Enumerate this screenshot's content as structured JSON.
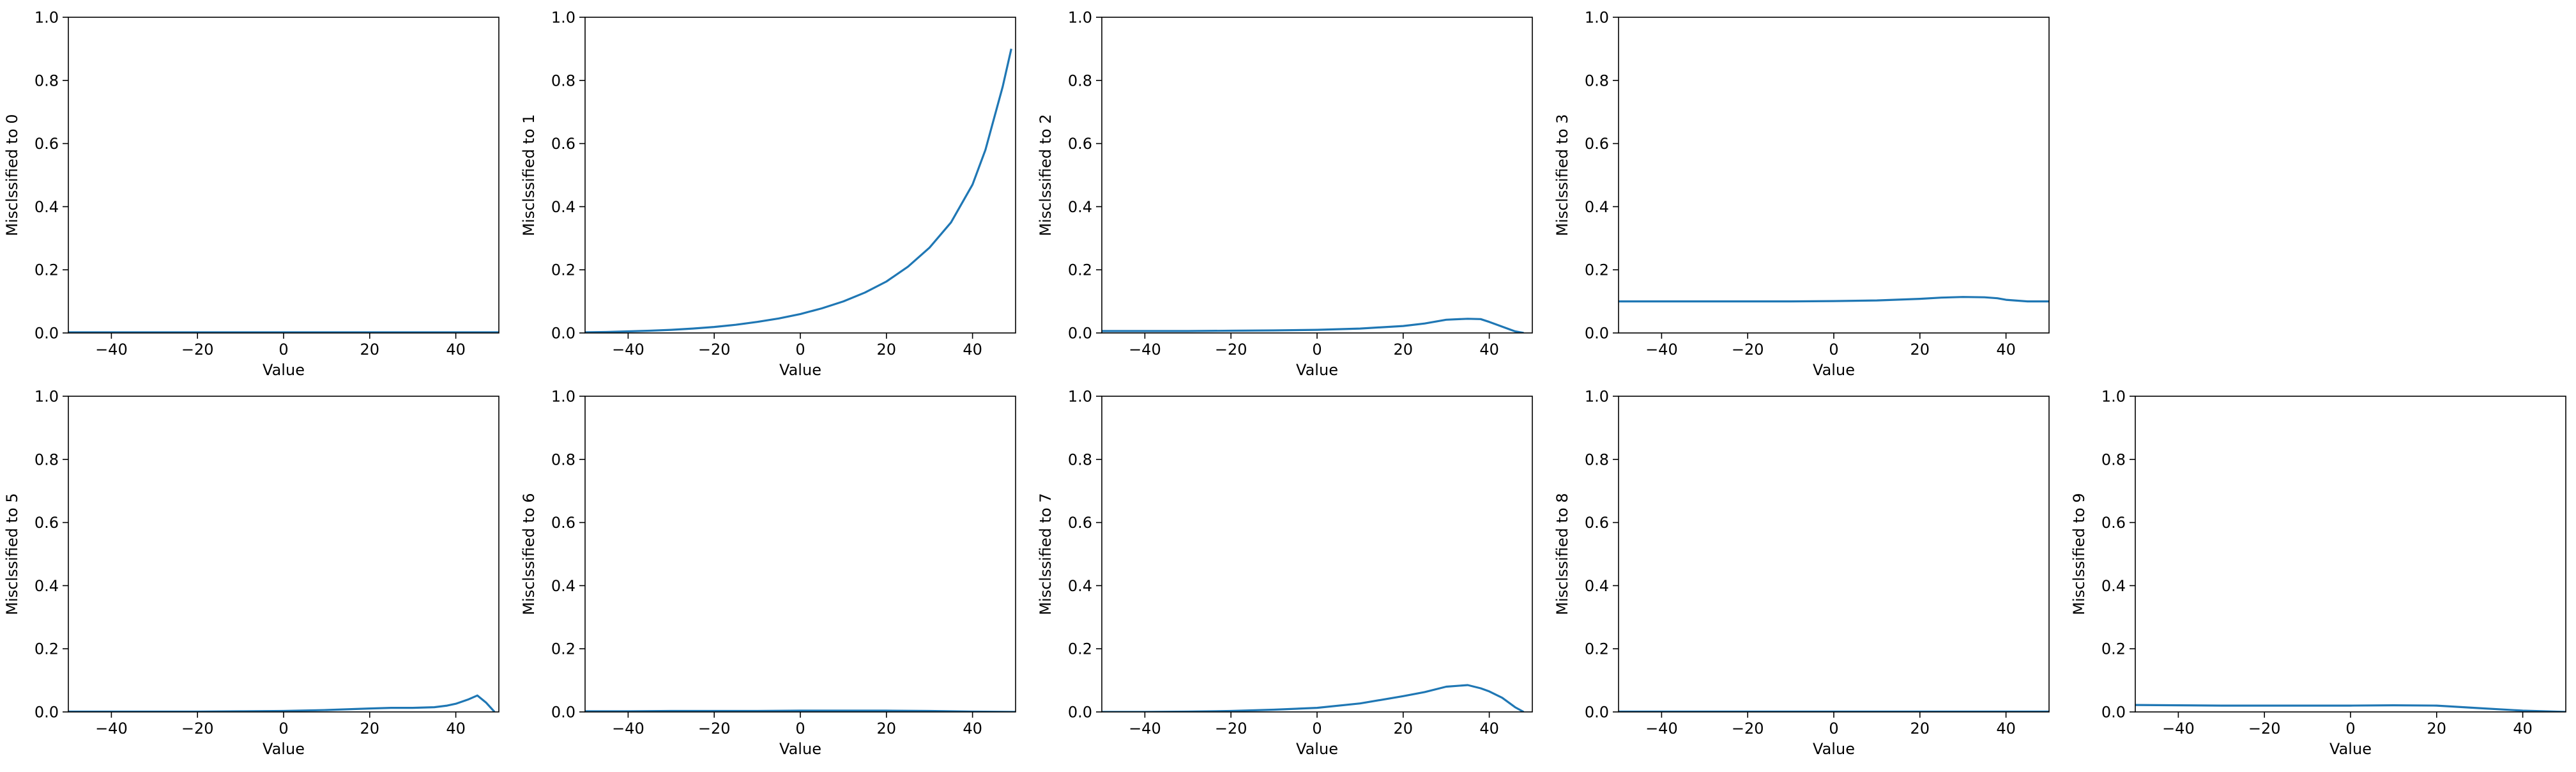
{
  "chart_data": [
    {
      "type": "line",
      "ylabel": "Misclssified to 0",
      "xlabel": "Value",
      "xlim": [
        -50,
        50
      ],
      "ylim": [
        0,
        1
      ],
      "xticks": [
        -40,
        -20,
        0,
        20,
        40
      ],
      "yticks": [
        0.0,
        0.2,
        0.4,
        0.6,
        0.8,
        1.0
      ],
      "color": "#1f77b4",
      "series": [
        {
          "x": [
            -50,
            -40,
            -30,
            -20,
            -10,
            0,
            10,
            20,
            30,
            40,
            50
          ],
          "y": [
            0.002,
            0.002,
            0.002,
            0.002,
            0.002,
            0.002,
            0.002,
            0.002,
            0.002,
            0.002,
            0.002
          ]
        }
      ]
    },
    {
      "type": "line",
      "ylabel": "Misclssified to 1",
      "xlabel": "Value",
      "xlim": [
        -50,
        50
      ],
      "ylim": [
        0,
        1
      ],
      "xticks": [
        -40,
        -20,
        0,
        20,
        40
      ],
      "yticks": [
        0.0,
        0.2,
        0.4,
        0.6,
        0.8,
        1.0
      ],
      "color": "#1f77b4",
      "series": [
        {
          "x": [
            -50,
            -45,
            -40,
            -35,
            -30,
            -25,
            -20,
            -15,
            -10,
            -5,
            0,
            5,
            10,
            15,
            20,
            25,
            30,
            35,
            40,
            43,
            45,
            47,
            49
          ],
          "y": [
            0.002,
            0.003,
            0.005,
            0.007,
            0.01,
            0.014,
            0.019,
            0.026,
            0.035,
            0.046,
            0.06,
            0.078,
            0.1,
            0.128,
            0.163,
            0.21,
            0.27,
            0.35,
            0.47,
            0.58,
            0.68,
            0.78,
            0.9
          ]
        }
      ]
    },
    {
      "type": "line",
      "ylabel": "Misclssified to 2",
      "xlabel": "Value",
      "xlim": [
        -50,
        50
      ],
      "ylim": [
        0,
        1
      ],
      "xticks": [
        -40,
        -20,
        0,
        20,
        40
      ],
      "yticks": [
        0.0,
        0.2,
        0.4,
        0.6,
        0.8,
        1.0
      ],
      "color": "#1f77b4",
      "series": [
        {
          "x": [
            -50,
            -40,
            -30,
            -20,
            -10,
            0,
            10,
            20,
            25,
            30,
            35,
            38,
            40,
            43,
            46,
            48
          ],
          "y": [
            0.006,
            0.006,
            0.006,
            0.007,
            0.008,
            0.01,
            0.014,
            0.022,
            0.03,
            0.042,
            0.045,
            0.044,
            0.035,
            0.02,
            0.005,
            0.0
          ]
        }
      ]
    },
    {
      "type": "line",
      "ylabel": "Misclssified to 3",
      "xlabel": "Value",
      "xlim": [
        -50,
        50
      ],
      "ylim": [
        0,
        1
      ],
      "xticks": [
        -40,
        -20,
        0,
        20,
        40
      ],
      "yticks": [
        0.0,
        0.2,
        0.4,
        0.6,
        0.8,
        1.0
      ],
      "color": "#1f77b4",
      "series": [
        {
          "x": [
            -50,
            -40,
            -30,
            -20,
            -10,
            0,
            10,
            20,
            25,
            30,
            35,
            38,
            40,
            45,
            50
          ],
          "y": [
            0.1,
            0.1,
            0.1,
            0.1,
            0.1,
            0.101,
            0.103,
            0.108,
            0.112,
            0.114,
            0.113,
            0.11,
            0.105,
            0.1,
            0.1
          ]
        }
      ]
    },
    {
      "type": "line",
      "ylabel": "Misclssified to 5",
      "xlabel": "Value",
      "xlim": [
        -50,
        50
      ],
      "ylim": [
        0,
        1
      ],
      "xticks": [
        -40,
        -20,
        0,
        20,
        40
      ],
      "yticks": [
        0.0,
        0.2,
        0.4,
        0.6,
        0.8,
        1.0
      ],
      "color": "#1f77b4",
      "series": [
        {
          "x": [
            -50,
            -40,
            -30,
            -20,
            -10,
            0,
            10,
            20,
            25,
            30,
            35,
            38,
            40,
            43,
            45,
            47,
            49
          ],
          "y": [
            0.001,
            0.001,
            0.001,
            0.001,
            0.002,
            0.003,
            0.006,
            0.011,
            0.013,
            0.013,
            0.015,
            0.02,
            0.026,
            0.04,
            0.052,
            0.03,
            0.0
          ]
        }
      ]
    },
    {
      "type": "line",
      "ylabel": "Misclssified to 6",
      "xlabel": "Value",
      "xlim": [
        -50,
        50
      ],
      "ylim": [
        0,
        1
      ],
      "xticks": [
        -40,
        -20,
        0,
        20,
        40
      ],
      "yticks": [
        0.0,
        0.2,
        0.4,
        0.6,
        0.8,
        1.0
      ],
      "color": "#1f77b4",
      "series": [
        {
          "x": [
            -50,
            -40,
            -30,
            -20,
            -10,
            0,
            10,
            20,
            30,
            40,
            50
          ],
          "y": [
            0.002,
            0.002,
            0.003,
            0.003,
            0.003,
            0.004,
            0.004,
            0.004,
            0.003,
            0.001,
            0.0
          ]
        }
      ]
    },
    {
      "type": "line",
      "ylabel": "Misclssified to 7",
      "xlabel": "Value",
      "xlim": [
        -50,
        50
      ],
      "ylim": [
        0,
        1
      ],
      "xticks": [
        -40,
        -20,
        0,
        20,
        40
      ],
      "yticks": [
        0.0,
        0.2,
        0.4,
        0.6,
        0.8,
        1.0
      ],
      "color": "#1f77b4",
      "series": [
        {
          "x": [
            -50,
            -40,
            -30,
            -20,
            -10,
            0,
            10,
            20,
            25,
            30,
            35,
            38,
            40,
            43,
            46,
            48
          ],
          "y": [
            0.0,
            0.0,
            0.001,
            0.003,
            0.007,
            0.013,
            0.027,
            0.05,
            0.063,
            0.08,
            0.085,
            0.075,
            0.065,
            0.045,
            0.015,
            0.0
          ]
        }
      ]
    },
    {
      "type": "line",
      "ylabel": "Misclssified to 8",
      "xlabel": "Value",
      "xlim": [
        -50,
        50
      ],
      "ylim": [
        0,
        1
      ],
      "xticks": [
        -40,
        -20,
        0,
        20,
        40
      ],
      "yticks": [
        0.0,
        0.2,
        0.4,
        0.6,
        0.8,
        1.0
      ],
      "color": "#1f77b4",
      "series": [
        {
          "x": [
            -50,
            -40,
            -30,
            -20,
            -10,
            0,
            10,
            20,
            30,
            40,
            50
          ],
          "y": [
            0.001,
            0.001,
            0.001,
            0.001,
            0.001,
            0.001,
            0.001,
            0.001,
            0.001,
            0.001,
            0.001
          ]
        }
      ]
    },
    {
      "type": "line",
      "ylabel": "Misclssified to 9",
      "xlabel": "Value",
      "xlim": [
        -50,
        50
      ],
      "ylim": [
        0,
        1
      ],
      "xticks": [
        -40,
        -20,
        0,
        20,
        40
      ],
      "yticks": [
        0.0,
        0.2,
        0.4,
        0.6,
        0.8,
        1.0
      ],
      "color": "#1f77b4",
      "series": [
        {
          "x": [
            -50,
            -40,
            -30,
            -20,
            -10,
            0,
            10,
            20,
            30,
            40,
            50
          ],
          "y": [
            0.022,
            0.021,
            0.02,
            0.02,
            0.02,
            0.02,
            0.021,
            0.02,
            0.012,
            0.004,
            0.0
          ]
        }
      ]
    }
  ]
}
